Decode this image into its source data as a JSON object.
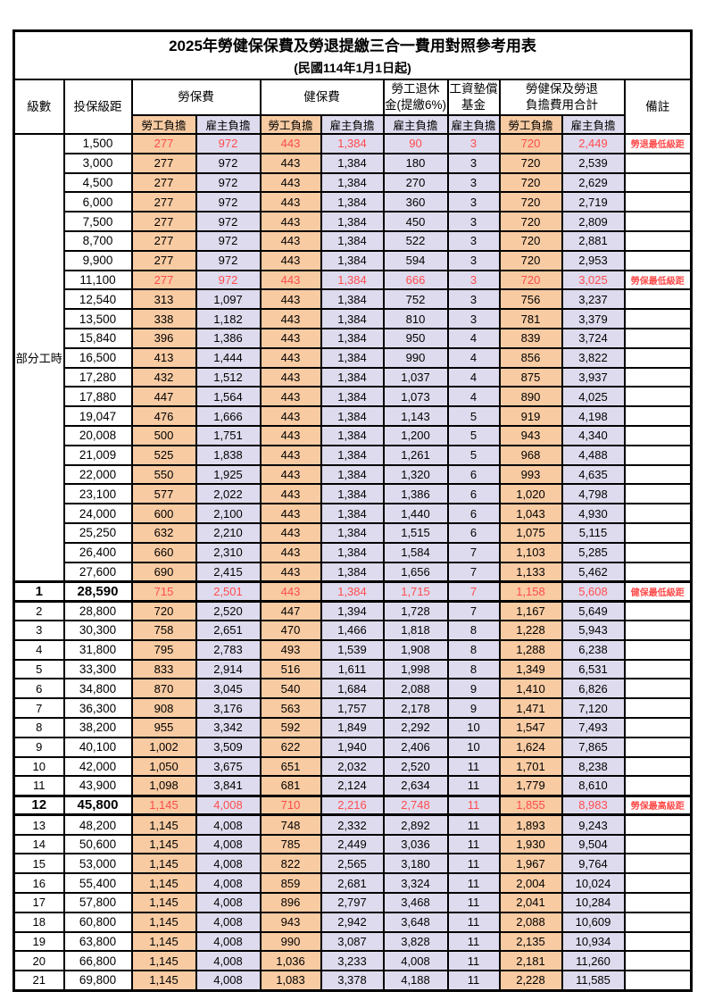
{
  "title": "2025年勞健保保費及勞退提繳三合一費用對照參考用表",
  "subtitle": "(民國114年1月1日起)",
  "header": {
    "level": "級數",
    "bracket": "投保級距",
    "labor_fee": "勞保費",
    "health_fee": "健保費",
    "pension_line1": "勞工退休",
    "pension_line2": "金(提繳6%)",
    "wage_fund_line1": "工資墊償",
    "wage_fund_line2": "基金",
    "combined_line1": "勞健保及勞退",
    "combined_line2": "負擔費用合計",
    "remark": "備註",
    "employee_share": "勞工負擔",
    "employer_share": "雇主負擔"
  },
  "part_time_label": "部分工時",
  "part_time_rowspan": 23,
  "colors": {
    "employee_bg": "#F8CBA3",
    "employer_bg": "#DFDBEE",
    "highlight_red": "#FF4C4C",
    "border": "#000000"
  },
  "rows": [
    {
      "level": null,
      "bracket": "1,500",
      "values": [
        "277",
        "972",
        "443",
        "1,384",
        "90",
        "3",
        "720",
        "2,449"
      ],
      "remark": "勞退最低級距",
      "highlight": true,
      "emphasis": false
    },
    {
      "level": null,
      "bracket": "3,000",
      "values": [
        "277",
        "972",
        "443",
        "1,384",
        "180",
        "3",
        "720",
        "2,539"
      ],
      "remark": "",
      "highlight": false,
      "emphasis": false
    },
    {
      "level": null,
      "bracket": "4,500",
      "values": [
        "277",
        "972",
        "443",
        "1,384",
        "270",
        "3",
        "720",
        "2,629"
      ],
      "remark": "",
      "highlight": false,
      "emphasis": false
    },
    {
      "level": null,
      "bracket": "6,000",
      "values": [
        "277",
        "972",
        "443",
        "1,384",
        "360",
        "3",
        "720",
        "2,719"
      ],
      "remark": "",
      "highlight": false,
      "emphasis": false
    },
    {
      "level": null,
      "bracket": "7,500",
      "values": [
        "277",
        "972",
        "443",
        "1,384",
        "450",
        "3",
        "720",
        "2,809"
      ],
      "remark": "",
      "highlight": false,
      "emphasis": false
    },
    {
      "level": null,
      "bracket": "8,700",
      "values": [
        "277",
        "972",
        "443",
        "1,384",
        "522",
        "3",
        "720",
        "2,881"
      ],
      "remark": "",
      "highlight": false,
      "emphasis": false
    },
    {
      "level": null,
      "bracket": "9,900",
      "values": [
        "277",
        "972",
        "443",
        "1,384",
        "594",
        "3",
        "720",
        "2,953"
      ],
      "remark": "",
      "highlight": false,
      "emphasis": false
    },
    {
      "level": null,
      "bracket": "11,100",
      "values": [
        "277",
        "972",
        "443",
        "1,384",
        "666",
        "3",
        "720",
        "3,025"
      ],
      "remark": "勞保最低級距",
      "highlight": true,
      "emphasis": false
    },
    {
      "level": null,
      "bracket": "12,540",
      "values": [
        "313",
        "1,097",
        "443",
        "1,384",
        "752",
        "3",
        "756",
        "3,237"
      ],
      "remark": "",
      "highlight": false,
      "emphasis": false
    },
    {
      "level": null,
      "bracket": "13,500",
      "values": [
        "338",
        "1,182",
        "443",
        "1,384",
        "810",
        "3",
        "781",
        "3,379"
      ],
      "remark": "",
      "highlight": false,
      "emphasis": false
    },
    {
      "level": null,
      "bracket": "15,840",
      "values": [
        "396",
        "1,386",
        "443",
        "1,384",
        "950",
        "4",
        "839",
        "3,724"
      ],
      "remark": "",
      "highlight": false,
      "emphasis": false
    },
    {
      "level": null,
      "bracket": "16,500",
      "values": [
        "413",
        "1,444",
        "443",
        "1,384",
        "990",
        "4",
        "856",
        "3,822"
      ],
      "remark": "",
      "highlight": false,
      "emphasis": false
    },
    {
      "level": null,
      "bracket": "17,280",
      "values": [
        "432",
        "1,512",
        "443",
        "1,384",
        "1,037",
        "4",
        "875",
        "3,937"
      ],
      "remark": "",
      "highlight": false,
      "emphasis": false
    },
    {
      "level": null,
      "bracket": "17,880",
      "values": [
        "447",
        "1,564",
        "443",
        "1,384",
        "1,073",
        "4",
        "890",
        "4,025"
      ],
      "remark": "",
      "highlight": false,
      "emphasis": false
    },
    {
      "level": null,
      "bracket": "19,047",
      "values": [
        "476",
        "1,666",
        "443",
        "1,384",
        "1,143",
        "5",
        "919",
        "4,198"
      ],
      "remark": "",
      "highlight": false,
      "emphasis": false
    },
    {
      "level": null,
      "bracket": "20,008",
      "values": [
        "500",
        "1,751",
        "443",
        "1,384",
        "1,200",
        "5",
        "943",
        "4,340"
      ],
      "remark": "",
      "highlight": false,
      "emphasis": false
    },
    {
      "level": null,
      "bracket": "21,009",
      "values": [
        "525",
        "1,838",
        "443",
        "1,384",
        "1,261",
        "5",
        "968",
        "4,488"
      ],
      "remark": "",
      "highlight": false,
      "emphasis": false
    },
    {
      "level": null,
      "bracket": "22,000",
      "values": [
        "550",
        "1,925",
        "443",
        "1,384",
        "1,320",
        "6",
        "993",
        "4,635"
      ],
      "remark": "",
      "highlight": false,
      "emphasis": false
    },
    {
      "level": null,
      "bracket": "23,100",
      "values": [
        "577",
        "2,022",
        "443",
        "1,384",
        "1,386",
        "6",
        "1,020",
        "4,798"
      ],
      "remark": "",
      "highlight": false,
      "emphasis": false
    },
    {
      "level": null,
      "bracket": "24,000",
      "values": [
        "600",
        "2,100",
        "443",
        "1,384",
        "1,440",
        "6",
        "1,043",
        "4,930"
      ],
      "remark": "",
      "highlight": false,
      "emphasis": false
    },
    {
      "level": null,
      "bracket": "25,250",
      "values": [
        "632",
        "2,210",
        "443",
        "1,384",
        "1,515",
        "6",
        "1,075",
        "5,115"
      ],
      "remark": "",
      "highlight": false,
      "emphasis": false
    },
    {
      "level": null,
      "bracket": "26,400",
      "values": [
        "660",
        "2,310",
        "443",
        "1,384",
        "1,584",
        "7",
        "1,103",
        "5,285"
      ],
      "remark": "",
      "highlight": false,
      "emphasis": false
    },
    {
      "level": null,
      "bracket": "27,600",
      "values": [
        "690",
        "2,415",
        "443",
        "1,384",
        "1,656",
        "7",
        "1,133",
        "5,462"
      ],
      "remark": "",
      "highlight": false,
      "emphasis": false
    },
    {
      "level": "1",
      "bracket": "28,590",
      "values": [
        "715",
        "2,501",
        "443",
        "1,384",
        "1,715",
        "7",
        "1,158",
        "5,608"
      ],
      "remark": "健保最低級距",
      "highlight": true,
      "emphasis": true
    },
    {
      "level": "2",
      "bracket": "28,800",
      "values": [
        "720",
        "2,520",
        "447",
        "1,394",
        "1,728",
        "7",
        "1,167",
        "5,649"
      ],
      "remark": "",
      "highlight": false,
      "emphasis": false
    },
    {
      "level": "3",
      "bracket": "30,300",
      "values": [
        "758",
        "2,651",
        "470",
        "1,466",
        "1,818",
        "8",
        "1,228",
        "5,943"
      ],
      "remark": "",
      "highlight": false,
      "emphasis": false
    },
    {
      "level": "4",
      "bracket": "31,800",
      "values": [
        "795",
        "2,783",
        "493",
        "1,539",
        "1,908",
        "8",
        "1,288",
        "6,238"
      ],
      "remark": "",
      "highlight": false,
      "emphasis": false
    },
    {
      "level": "5",
      "bracket": "33,300",
      "values": [
        "833",
        "2,914",
        "516",
        "1,611",
        "1,998",
        "8",
        "1,349",
        "6,531"
      ],
      "remark": "",
      "highlight": false,
      "emphasis": false
    },
    {
      "level": "6",
      "bracket": "34,800",
      "values": [
        "870",
        "3,045",
        "540",
        "1,684",
        "2,088",
        "9",
        "1,410",
        "6,826"
      ],
      "remark": "",
      "highlight": false,
      "emphasis": false
    },
    {
      "level": "7",
      "bracket": "36,300",
      "values": [
        "908",
        "3,176",
        "563",
        "1,757",
        "2,178",
        "9",
        "1,471",
        "7,120"
      ],
      "remark": "",
      "highlight": false,
      "emphasis": false
    },
    {
      "level": "8",
      "bracket": "38,200",
      "values": [
        "955",
        "3,342",
        "592",
        "1,849",
        "2,292",
        "10",
        "1,547",
        "7,493"
      ],
      "remark": "",
      "highlight": false,
      "emphasis": false
    },
    {
      "level": "9",
      "bracket": "40,100",
      "values": [
        "1,002",
        "3,509",
        "622",
        "1,940",
        "2,406",
        "10",
        "1,624",
        "7,865"
      ],
      "remark": "",
      "highlight": false,
      "emphasis": false
    },
    {
      "level": "10",
      "bracket": "42,000",
      "values": [
        "1,050",
        "3,675",
        "651",
        "2,032",
        "2,520",
        "11",
        "1,701",
        "8,238"
      ],
      "remark": "",
      "highlight": false,
      "emphasis": false
    },
    {
      "level": "11",
      "bracket": "43,900",
      "values": [
        "1,098",
        "3,841",
        "681",
        "2,124",
        "2,634",
        "11",
        "1,779",
        "8,610"
      ],
      "remark": "",
      "highlight": false,
      "emphasis": false
    },
    {
      "level": "12",
      "bracket": "45,800",
      "values": [
        "1,145",
        "4,008",
        "710",
        "2,216",
        "2,748",
        "11",
        "1,855",
        "8,983"
      ],
      "remark": "勞保最高級距",
      "highlight": true,
      "emphasis": true
    },
    {
      "level": "13",
      "bracket": "48,200",
      "values": [
        "1,145",
        "4,008",
        "748",
        "2,332",
        "2,892",
        "11",
        "1,893",
        "9,243"
      ],
      "remark": "",
      "highlight": false,
      "emphasis": false
    },
    {
      "level": "14",
      "bracket": "50,600",
      "values": [
        "1,145",
        "4,008",
        "785",
        "2,449",
        "3,036",
        "11",
        "1,930",
        "9,504"
      ],
      "remark": "",
      "highlight": false,
      "emphasis": false
    },
    {
      "level": "15",
      "bracket": "53,000",
      "values": [
        "1,145",
        "4,008",
        "822",
        "2,565",
        "3,180",
        "11",
        "1,967",
        "9,764"
      ],
      "remark": "",
      "highlight": false,
      "emphasis": false
    },
    {
      "level": "16",
      "bracket": "55,400",
      "values": [
        "1,145",
        "4,008",
        "859",
        "2,681",
        "3,324",
        "11",
        "2,004",
        "10,024"
      ],
      "remark": "",
      "highlight": false,
      "emphasis": false
    },
    {
      "level": "17",
      "bracket": "57,800",
      "values": [
        "1,145",
        "4,008",
        "896",
        "2,797",
        "3,468",
        "11",
        "2,041",
        "10,284"
      ],
      "remark": "",
      "highlight": false,
      "emphasis": false
    },
    {
      "level": "18",
      "bracket": "60,800",
      "values": [
        "1,145",
        "4,008",
        "943",
        "2,942",
        "3,648",
        "11",
        "2,088",
        "10,609"
      ],
      "remark": "",
      "highlight": false,
      "emphasis": false
    },
    {
      "level": "19",
      "bracket": "63,800",
      "values": [
        "1,145",
        "4,008",
        "990",
        "3,087",
        "3,828",
        "11",
        "2,135",
        "10,934"
      ],
      "remark": "",
      "highlight": false,
      "emphasis": false
    },
    {
      "level": "20",
      "bracket": "66,800",
      "values": [
        "1,145",
        "4,008",
        "1,036",
        "3,233",
        "4,008",
        "11",
        "2,181",
        "11,260"
      ],
      "remark": "",
      "highlight": false,
      "emphasis": false
    },
    {
      "level": "21",
      "bracket": "69,800",
      "values": [
        "1,145",
        "4,008",
        "1,083",
        "3,378",
        "4,188",
        "11",
        "2,228",
        "11,585"
      ],
      "remark": "",
      "highlight": false,
      "emphasis": false
    }
  ]
}
